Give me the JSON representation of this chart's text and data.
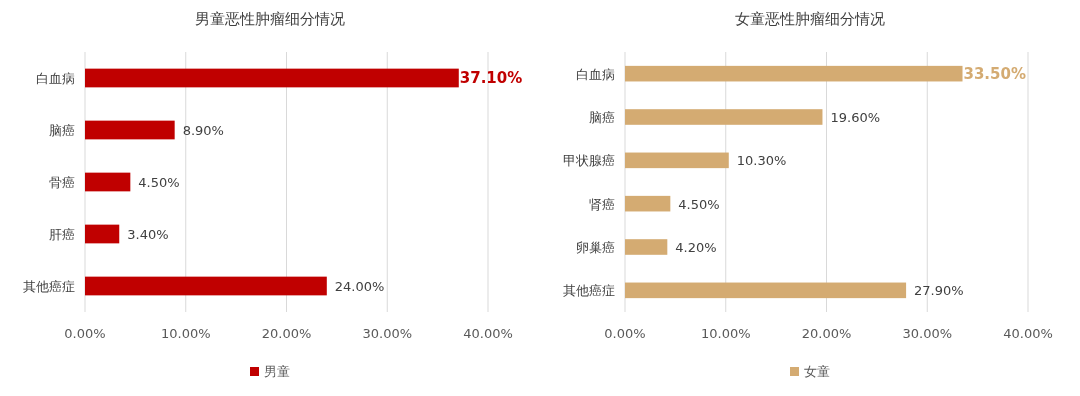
{
  "chart_data": [
    {
      "type": "bar",
      "orientation": "horizontal",
      "title": "男童恶性肿瘤细分情况",
      "categories": [
        "白血病",
        "脑癌",
        "骨癌",
        "肝癌",
        "其他癌症"
      ],
      "series": [
        {
          "name": "男童",
          "color": "#c00000",
          "values": [
            37.1,
            8.9,
            4.5,
            3.4,
            24.0
          ],
          "value_labels": [
            "37.10%",
            "8.90%",
            "4.50%",
            "3.40%",
            "24.00%"
          ]
        }
      ],
      "xlim": [
        0,
        40
      ],
      "xticks": [
        {
          "value": 0,
          "label": "0.00%"
        },
        {
          "value": 10,
          "label": "10.00%"
        },
        {
          "value": 20,
          "label": "20.00%"
        },
        {
          "value": 30,
          "label": "30.00%"
        },
        {
          "value": 40,
          "label": "40.00%"
        }
      ],
      "grid": "x",
      "legend": "bottom"
    },
    {
      "type": "bar",
      "orientation": "horizontal",
      "title": "女童恶性肿瘤细分情况",
      "categories": [
        "白血病",
        "脑癌",
        "甲状腺癌",
        "肾癌",
        "卵巢癌",
        "其他癌症"
      ],
      "series": [
        {
          "name": "女童",
          "color": "#d4ab72",
          "values": [
            33.5,
            19.6,
            10.3,
            4.5,
            4.2,
            27.9
          ],
          "value_labels": [
            "33.50%",
            "19.60%",
            "10.30%",
            "4.50%",
            "4.20%",
            "27.90%"
          ]
        }
      ],
      "xlim": [
        0,
        40
      ],
      "xticks": [
        {
          "value": 0,
          "label": "0.00%"
        },
        {
          "value": 10,
          "label": "10.00%"
        },
        {
          "value": 20,
          "label": "20.00%"
        },
        {
          "value": 30,
          "label": "30.00%"
        },
        {
          "value": 40,
          "label": "40.00%"
        }
      ],
      "grid": "x",
      "legend": "bottom"
    }
  ]
}
